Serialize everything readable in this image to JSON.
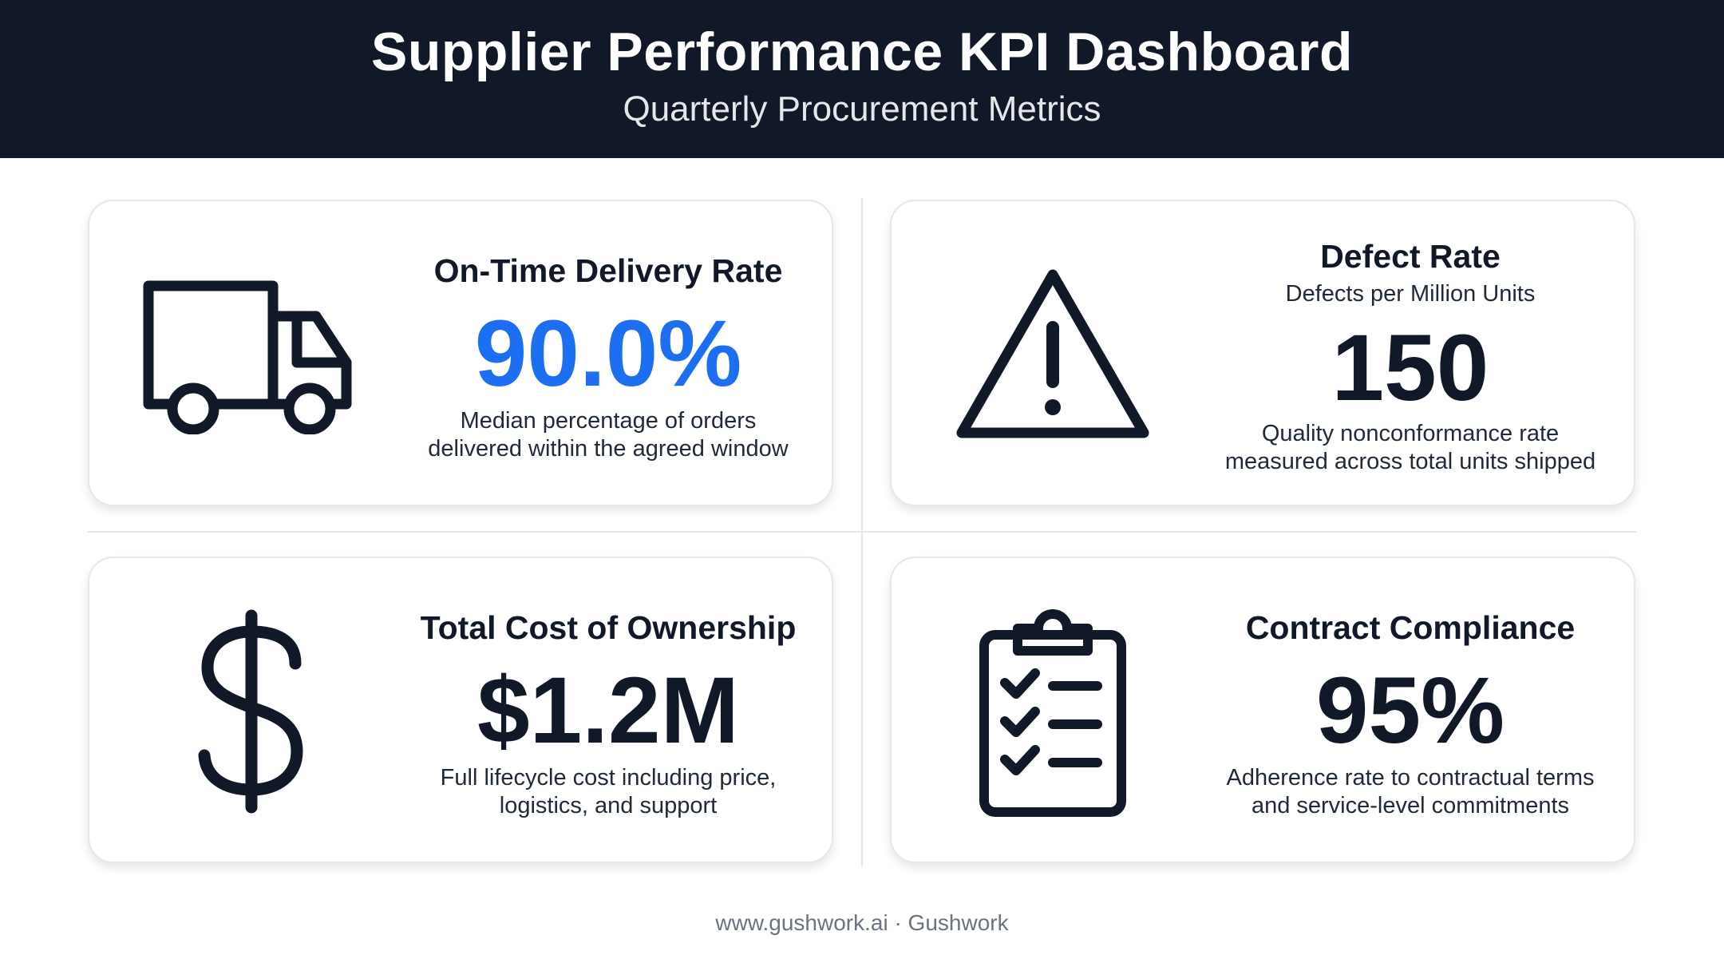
{
  "header": {
    "title": "Supplier Performance KPI Dashboard",
    "subtitle": "Quarterly Procurement Metrics"
  },
  "colors": {
    "header_bg": "#111827",
    "accent_blue": "#1d6ff2",
    "text_dark": "#111827",
    "card_border": "#e5e7eb"
  },
  "cards": [
    {
      "icon": "truck-icon",
      "title": "On-Time Delivery Rate",
      "value": "90.0%",
      "description": [
        "Median percentage of orders",
        "delivered within the agreed window"
      ]
    },
    {
      "icon": "warning-triangle-icon",
      "title": "Defect Rate",
      "subtitle": "Defects per Million Units",
      "value": "150",
      "description": [
        "Quality nonconformance rate",
        "measured across total units shipped"
      ]
    },
    {
      "icon": "dollar-sign-icon",
      "title": "Total Cost of Ownership",
      "value": "$1.2M",
      "description": [
        "Full lifecycle cost including price,",
        "logistics, and support"
      ]
    },
    {
      "icon": "clipboard-checklist-icon",
      "title": "Contract Compliance",
      "value": "95%",
      "description": [
        "Adherence rate to contractual terms",
        "and service-level commitments"
      ]
    }
  ],
  "footer": {
    "text": "www.gushwork.ai · Gushwork"
  }
}
